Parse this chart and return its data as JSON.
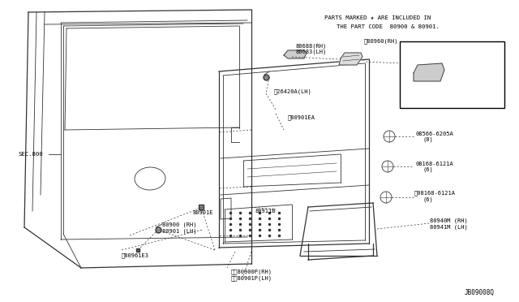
{
  "background_color": "#ffffff",
  "fig_width": 6.4,
  "fig_height": 3.72,
  "dpi": 100,
  "note_line1": "PARTS MARKED ★ ARE INCLUDED IN",
  "note_line2": "THE PART CODE  80900 & 80901.",
  "diagram_id": "JB09008Q",
  "sec_label": "SEC.800",
  "text_color": "#000000",
  "line_color": "#333333"
}
